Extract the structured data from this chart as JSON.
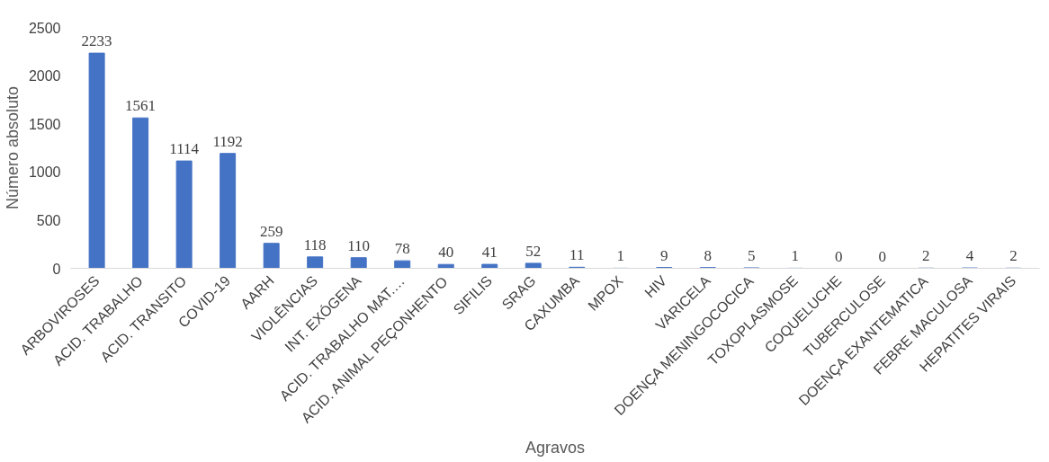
{
  "chart_data": {
    "type": "bar",
    "xlabel": "Agravos",
    "ylabel": "Número absoluto",
    "categories": [
      "ARBOVIROSES",
      "ACID. TRABALHO",
      "ACID. TRANSITO",
      "COVID-19",
      "AARH",
      "VIOLÊNCIAS",
      "INT. EXÓGENA",
      "ACID. TRABALHO MAT.…",
      "ACID. ANIMAL PEÇONHENTO",
      "SIFILIS",
      "SRAG",
      "CAXUMBA",
      "MPOX",
      "HIV",
      "VARICELA",
      "DOENÇA MENINGOCOCICA",
      "TOXOPLASMOSE",
      "COQUELUCHE",
      "TUBERCULOSE",
      "DOENÇA EXANTEMATICA",
      "FEBRE MACULOSA",
      "HEPATITES VIRAIS"
    ],
    "values": [
      2233,
      1561,
      1114,
      1192,
      259,
      118,
      110,
      78,
      40,
      41,
      52,
      11,
      1,
      9,
      8,
      5,
      1,
      0,
      0,
      2,
      4,
      2
    ],
    "color": "#4472c4",
    "ylim": [
      0,
      2500
    ],
    "yticks": [
      0,
      500,
      1000,
      1500,
      2000,
      2500
    ],
    "grid": false,
    "data_labels": true
  }
}
